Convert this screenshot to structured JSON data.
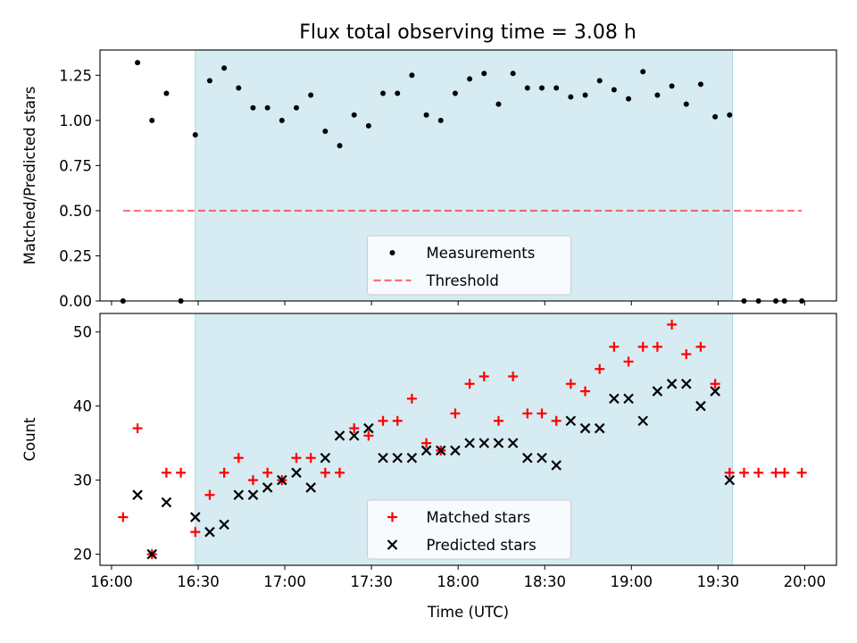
{
  "title": "Flux total observing time = 3.08 h",
  "colors": {
    "shade": "#add8e6",
    "threshold": "#ff0000",
    "matched": "#ff0000",
    "predicted": "#000000",
    "measurement": "#000000"
  },
  "chart_data": [
    {
      "type": "scatter",
      "panel": "top",
      "ylabel": "Matched/Predicted stars",
      "ylim": [
        0,
        1.39
      ],
      "yticks": [
        "0.00",
        "0.25",
        "0.50",
        "0.75",
        "1.00",
        "1.25"
      ],
      "ytick_values": [
        0,
        0.25,
        0.5,
        0.75,
        1.0,
        1.25
      ],
      "xlim": [
        "15:56",
        "20:11"
      ],
      "shaded_interval": [
        "16:29",
        "19:35"
      ],
      "legend_position": "lower center",
      "series": [
        {
          "name": "Measurements",
          "x": [
            "16:04",
            "16:09",
            "16:14",
            "16:19",
            "16:24",
            "16:29",
            "16:34",
            "16:39",
            "16:44",
            "16:49",
            "16:54",
            "16:59",
            "17:04",
            "17:09",
            "17:14",
            "17:19",
            "17:24",
            "17:29",
            "17:34",
            "17:39",
            "17:44",
            "17:49",
            "17:54",
            "17:59",
            "18:04",
            "18:09",
            "18:14",
            "18:19",
            "18:24",
            "18:29",
            "18:34",
            "18:39",
            "18:44",
            "18:49",
            "18:54",
            "18:59",
            "19:04",
            "19:09",
            "19:14",
            "19:19",
            "19:24",
            "19:29",
            "19:34",
            "19:39",
            "19:44",
            "19:50",
            "19:53",
            "19:59"
          ],
          "y": [
            0.0,
            1.32,
            1.0,
            1.15,
            0.0,
            0.92,
            1.22,
            1.29,
            1.18,
            1.07,
            1.07,
            1.0,
            1.07,
            1.14,
            0.94,
            0.86,
            1.03,
            0.97,
            1.15,
            1.15,
            1.25,
            1.03,
            1.0,
            1.15,
            1.23,
            1.26,
            1.09,
            1.26,
            1.18,
            1.18,
            1.18,
            1.13,
            1.14,
            1.22,
            1.17,
            1.12,
            1.27,
            1.14,
            1.19,
            1.09,
            1.2,
            1.02,
            1.03,
            0.0,
            0.0,
            0.0,
            0.0,
            0.0
          ]
        },
        {
          "name": "Threshold",
          "x": [
            "16:04",
            "19:59"
          ],
          "y": [
            0.5,
            0.5
          ]
        }
      ]
    },
    {
      "type": "scatter",
      "panel": "bottom",
      "ylabel": "Count",
      "xlabel": "Time (UTC)",
      "ylim": [
        18.5,
        52.5
      ],
      "yticks": [
        "20",
        "30",
        "40",
        "50"
      ],
      "ytick_values": [
        20,
        30,
        40,
        50
      ],
      "xlim": [
        "15:56",
        "20:11"
      ],
      "xticks": [
        "16:00",
        "16:30",
        "17:00",
        "17:30",
        "18:00",
        "18:30",
        "19:00",
        "19:30",
        "20:00"
      ],
      "shaded_interval": [
        "16:29",
        "19:35"
      ],
      "legend_position": "lower center",
      "series": [
        {
          "name": "Matched stars",
          "x": [
            "16:04",
            "16:09",
            "16:14",
            "16:19",
            "16:24",
            "16:29",
            "16:34",
            "16:39",
            "16:44",
            "16:49",
            "16:54",
            "16:59",
            "17:04",
            "17:09",
            "17:14",
            "17:19",
            "17:24",
            "17:29",
            "17:34",
            "17:39",
            "17:44",
            "17:49",
            "17:54",
            "17:59",
            "18:04",
            "18:09",
            "18:14",
            "18:19",
            "18:24",
            "18:29",
            "18:34",
            "18:39",
            "18:44",
            "18:49",
            "18:54",
            "18:59",
            "19:04",
            "19:09",
            "19:14",
            "19:19",
            "19:24",
            "19:29",
            "19:34",
            "19:39",
            "19:44",
            "19:50",
            "19:53",
            "19:59"
          ],
          "y": [
            25,
            37,
            20,
            31,
            31,
            23,
            28,
            31,
            33,
            30,
            31,
            30,
            33,
            33,
            31,
            31,
            37,
            36,
            38,
            38,
            41,
            35,
            34,
            39,
            43,
            44,
            38,
            44,
            39,
            39,
            38,
            43,
            42,
            45,
            48,
            46,
            48,
            48,
            51,
            47,
            48,
            43,
            31,
            31,
            31,
            31,
            31,
            31
          ]
        },
        {
          "name": "Predicted stars",
          "x": [
            "16:09",
            "16:14",
            "16:19",
            "16:29",
            "16:34",
            "16:39",
            "16:44",
            "16:49",
            "16:54",
            "16:59",
            "17:04",
            "17:09",
            "17:14",
            "17:19",
            "17:24",
            "17:29",
            "17:34",
            "17:39",
            "17:44",
            "17:49",
            "17:54",
            "17:59",
            "18:04",
            "18:09",
            "18:14",
            "18:19",
            "18:24",
            "18:29",
            "18:34",
            "18:39",
            "18:44",
            "18:49",
            "18:54",
            "18:59",
            "19:04",
            "19:09",
            "19:14",
            "19:19",
            "19:24",
            "19:29",
            "19:34"
          ],
          "y": [
            28,
            20,
            27,
            25,
            23,
            24,
            28,
            28,
            29,
            30,
            31,
            29,
            33,
            36,
            36,
            37,
            33,
            33,
            33,
            34,
            34,
            34,
            35,
            35,
            35,
            35,
            33,
            33,
            32,
            38,
            37,
            37,
            41,
            41,
            38,
            42,
            43,
            43,
            40,
            42,
            30
          ]
        }
      ]
    }
  ]
}
